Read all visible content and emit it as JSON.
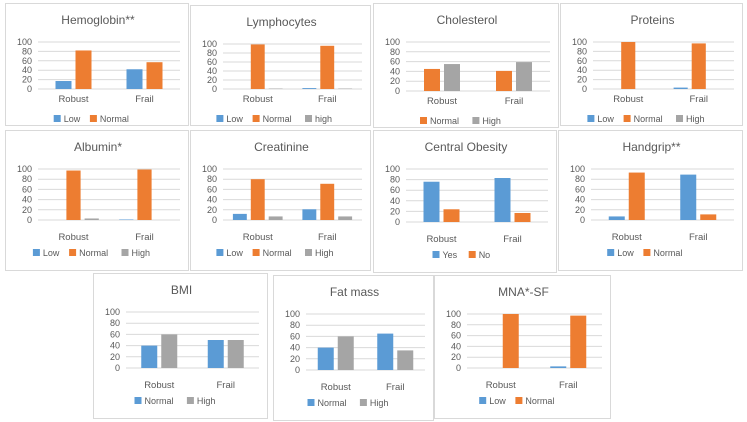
{
  "colors": {
    "blue": "#5b9bd5",
    "orange": "#ed7d31",
    "gray": "#a5a5a5"
  },
  "chart_data": [
    {
      "type": "bar",
      "title": "Hemoglobin**",
      "categories": [
        "Robust",
        "Frail"
      ],
      "ylim": [
        0,
        100
      ],
      "yticks": [
        "0",
        "20",
        "40",
        "60",
        "80",
        "100"
      ],
      "series": [
        {
          "name": "Low",
          "color": "#5b9bd5",
          "values": [
            17,
            42
          ]
        },
        {
          "name": "Normal",
          "color": "#ed7d31",
          "values": [
            82,
            57
          ]
        }
      ]
    },
    {
      "type": "bar",
      "title": "Lymphocytes",
      "categories": [
        "Robust",
        "Frail"
      ],
      "ylim": [
        0,
        100
      ],
      "yticks": [
        "0",
        "20",
        "40",
        "60",
        "80",
        "100"
      ],
      "series": [
        {
          "name": "Low",
          "color": "#5b9bd5",
          "values": [
            0,
            2
          ]
        },
        {
          "name": "Normal",
          "color": "#ed7d31",
          "values": [
            99,
            96
          ]
        },
        {
          "name": "high",
          "color": "#a5a5a5",
          "values": [
            1,
            1
          ]
        }
      ]
    },
    {
      "type": "bar",
      "title": "Cholesterol",
      "categories": [
        "Robust",
        "Frail"
      ],
      "ylim": [
        0,
        100
      ],
      "yticks": [
        "0",
        "20",
        "40",
        "60",
        "80",
        "100"
      ],
      "series": [
        {
          "name": "Normal",
          "color": "#ed7d31",
          "values": [
            45,
            41
          ]
        },
        {
          "name": "High",
          "color": "#a5a5a5",
          "values": [
            55,
            59
          ]
        }
      ]
    },
    {
      "type": "bar",
      "title": "Proteins",
      "categories": [
        "Robust",
        "Frail"
      ],
      "ylim": [
        0,
        100
      ],
      "yticks": [
        "0",
        "20",
        "40",
        "60",
        "80",
        "100"
      ],
      "series": [
        {
          "name": "Low",
          "color": "#5b9bd5",
          "values": [
            0,
            3
          ]
        },
        {
          "name": "Normal",
          "color": "#ed7d31",
          "values": [
            100,
            97
          ]
        },
        {
          "name": "High",
          "color": "#a5a5a5",
          "values": [
            0,
            0
          ]
        }
      ]
    },
    {
      "type": "bar",
      "title": "Albumin*",
      "categories": [
        "Robust",
        "Frail"
      ],
      "ylim": [
        0,
        100
      ],
      "yticks": [
        "0",
        "20",
        "40",
        "60",
        "80",
        "100"
      ],
      "series": [
        {
          "name": "Low",
          "color": "#5b9bd5",
          "values": [
            0,
            1
          ]
        },
        {
          "name": "Normal",
          "color": "#ed7d31",
          "values": [
            97,
            99
          ]
        },
        {
          "name": "High",
          "color": "#a5a5a5",
          "values": [
            3,
            0
          ]
        }
      ]
    },
    {
      "type": "bar",
      "title": "Creatinine",
      "categories": [
        "Robust",
        "Frail"
      ],
      "ylim": [
        0,
        100
      ],
      "yticks": [
        "0",
        "20",
        "40",
        "60",
        "80",
        "100"
      ],
      "series": [
        {
          "name": "Low",
          "color": "#5b9bd5",
          "values": [
            12,
            21
          ]
        },
        {
          "name": "Normal",
          "color": "#ed7d31",
          "values": [
            80,
            71
          ]
        },
        {
          "name": "High",
          "color": "#a5a5a5",
          "values": [
            7,
            7
          ]
        }
      ]
    },
    {
      "type": "bar",
      "title": "Central Obesity",
      "categories": [
        "Robust",
        "Frail"
      ],
      "ylim": [
        0,
        100
      ],
      "yticks": [
        "0",
        "20",
        "40",
        "60",
        "80",
        "100"
      ],
      "series": [
        {
          "name": "Yes",
          "color": "#5b9bd5",
          "values": [
            76,
            83
          ]
        },
        {
          "name": "No",
          "color": "#ed7d31",
          "values": [
            24,
            17
          ]
        }
      ]
    },
    {
      "type": "bar",
      "title": "Handgrip**",
      "categories": [
        "Robust",
        "Frail"
      ],
      "ylim": [
        0,
        100
      ],
      "yticks": [
        "0",
        "20",
        "40",
        "60",
        "80",
        "100"
      ],
      "series": [
        {
          "name": "Low",
          "color": "#5b9bd5",
          "values": [
            7,
            89
          ]
        },
        {
          "name": "Normal",
          "color": "#ed7d31",
          "values": [
            93,
            11
          ]
        }
      ]
    },
    {
      "type": "bar",
      "title": "BMI",
      "categories": [
        "Robust",
        "Frail"
      ],
      "ylim": [
        0,
        100
      ],
      "yticks": [
        "0",
        "20",
        "40",
        "60",
        "80",
        "100"
      ],
      "series": [
        {
          "name": "Normal",
          "color": "#5b9bd5",
          "values": [
            40,
            50
          ]
        },
        {
          "name": "High",
          "color": "#a5a5a5",
          "values": [
            60,
            50
          ]
        }
      ]
    },
    {
      "type": "bar",
      "title": "Fat mass",
      "categories": [
        "Robust",
        "Frail"
      ],
      "ylim": [
        0,
        100
      ],
      "yticks": [
        "0",
        "20",
        "40",
        "60",
        "80",
        "100"
      ],
      "series": [
        {
          "name": "Normal",
          "color": "#5b9bd5",
          "values": [
            40,
            65
          ]
        },
        {
          "name": "High",
          "color": "#a5a5a5",
          "values": [
            60,
            35
          ]
        }
      ]
    },
    {
      "type": "bar",
      "title": "MNA*-SF",
      "categories": [
        "Robust",
        "Frail"
      ],
      "ylim": [
        0,
        100
      ],
      "yticks": [
        "0",
        "20",
        "40",
        "60",
        "80",
        "100"
      ],
      "series": [
        {
          "name": "Low",
          "color": "#5b9bd5",
          "values": [
            0,
            3
          ]
        },
        {
          "name": "Normal",
          "color": "#ed7d31",
          "values": [
            100,
            97
          ]
        }
      ]
    }
  ]
}
